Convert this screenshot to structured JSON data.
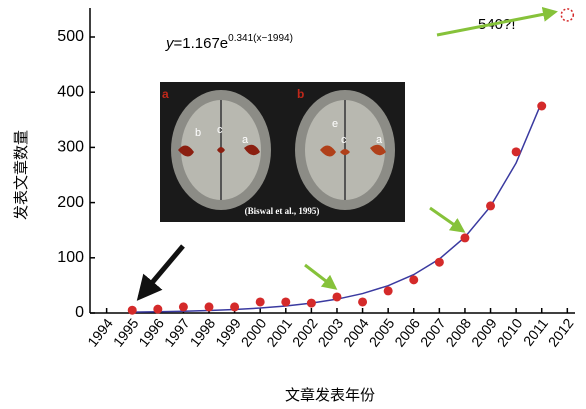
{
  "chart_data": {
    "type": "scatter",
    "x": [
      1995,
      1996,
      1997,
      1998,
      1999,
      2000,
      2001,
      2002,
      2003,
      2004,
      2005,
      2006,
      2007,
      2008,
      2009,
      2010,
      2011
    ],
    "values": [
      5,
      7,
      11,
      11,
      11,
      20,
      20,
      18,
      29,
      20,
      40,
      60,
      92,
      136,
      194,
      292,
      375
    ],
    "color": "#d42a2a",
    "fit": {
      "color": "#3a3aa0",
      "x": [
        1995,
        1996,
        1997,
        1998,
        1999,
        2000,
        2001,
        2002,
        2003,
        2004,
        2005,
        2006,
        2007,
        2008,
        2009,
        2010,
        2011
      ],
      "values": [
        1.64,
        2.31,
        3.24,
        4.56,
        6.41,
        9.01,
        12.67,
        17.81,
        25.04,
        35.2,
        49.5,
        69.6,
        97.8,
        137.5,
        193.3,
        271.8,
        382.1
      ]
    },
    "prediction": {
      "x": 2012,
      "value": 540,
      "color": "#d42a2a",
      "label": "540?!"
    },
    "equation": {
      "lhs": "y",
      "body": "=1.167e",
      "exponent": "0.341(x−1994)"
    },
    "xlabel": "文章发表年份",
    "ylabel": "发表文章数量",
    "xlim": [
      1993.35,
      2012.3
    ],
    "ylim": [
      0,
      500
    ],
    "xticks": [
      1994,
      1995,
      1996,
      1997,
      1998,
      1999,
      2000,
      2001,
      2002,
      2003,
      2004,
      2005,
      2006,
      2007,
      2008,
      2009,
      2010,
      2011,
      2012
    ],
    "yticks": [
      0,
      100,
      200,
      300,
      400,
      500
    ],
    "inset": {
      "panel_a": "a",
      "panel_b": "b",
      "regions_a": [
        "b",
        "c",
        "a"
      ],
      "regions_b": [
        "e",
        "c",
        "a"
      ],
      "credit": "(Biswal et al., 1995)"
    }
  }
}
